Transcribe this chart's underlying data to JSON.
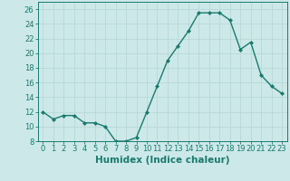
{
  "x": [
    0,
    1,
    2,
    3,
    4,
    5,
    6,
    7,
    8,
    9,
    10,
    11,
    12,
    13,
    14,
    15,
    16,
    17,
    18,
    19,
    20,
    21,
    22,
    23
  ],
  "y": [
    12,
    11,
    11.5,
    11.5,
    10.5,
    10.5,
    10,
    8,
    8,
    8.5,
    12,
    15.5,
    19,
    21,
    23,
    25.5,
    25.5,
    25.5,
    24.5,
    20.5,
    21.5,
    17,
    15.5,
    14.5
  ],
  "xlabel": "Humidex (Indice chaleur)",
  "ylim": [
    8,
    27
  ],
  "xlim": [
    -0.5,
    23.5
  ],
  "yticks": [
    8,
    10,
    12,
    14,
    16,
    18,
    20,
    22,
    24,
    26
  ],
  "xticks": [
    0,
    1,
    2,
    3,
    4,
    5,
    6,
    7,
    8,
    9,
    10,
    11,
    12,
    13,
    14,
    15,
    16,
    17,
    18,
    19,
    20,
    21,
    22,
    23
  ],
  "xtick_labels": [
    "0",
    "1",
    "2",
    "3",
    "4",
    "5",
    "6",
    "7",
    "8",
    "9",
    "10",
    "11",
    "12",
    "13",
    "14",
    "15",
    "16",
    "17",
    "18",
    "19",
    "20",
    "21",
    "22",
    "23"
  ],
  "line_color": "#1a7a6e",
  "marker": "D",
  "marker_size": 2,
  "line_width": 1.0,
  "bg_color": "#cce8e8",
  "grid_color": "#b8d8d8",
  "xlabel_fontsize": 7.5,
  "tick_fontsize": 6
}
